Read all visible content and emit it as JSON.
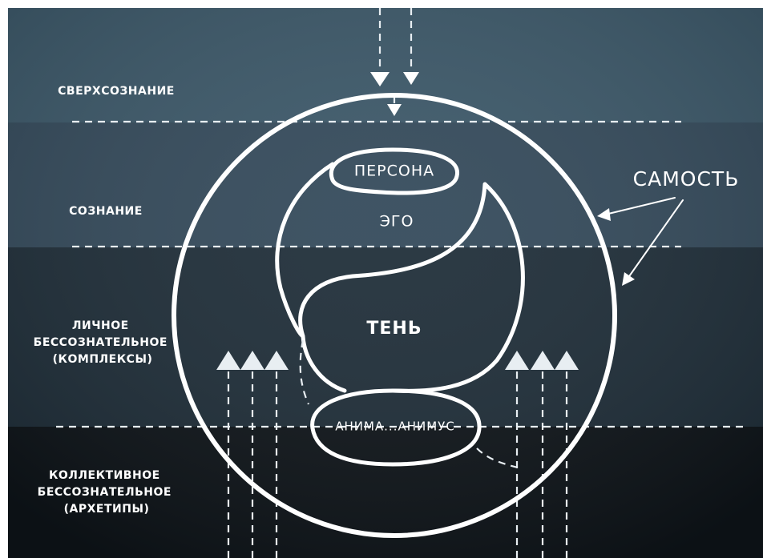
{
  "levels": [
    {
      "label": [
        "СВЕРХСОЗНАНИЕ"
      ]
    },
    {
      "label": [
        "СОЗНАНИЕ"
      ]
    },
    {
      "label": [
        "ЛИЧНОЕ",
        "БЕССОЗНАТЕЛЬНОЕ",
        "(КОМПЛЕКСЫ)"
      ]
    },
    {
      "label": [
        "КОЛЛЕКТИВНОЕ",
        "БЕССОЗНАТЕЛЬНОЕ",
        "(АРХЕТИПЫ)"
      ]
    }
  ],
  "nodes": [
    {
      "label": "ПЕРСОНА"
    },
    {
      "label": "ЭГО"
    },
    {
      "label": "ТЕНЬ"
    },
    {
      "label": "АНИМА...АНИМУС"
    },
    {
      "label": "САМОСТЬ"
    }
  ]
}
